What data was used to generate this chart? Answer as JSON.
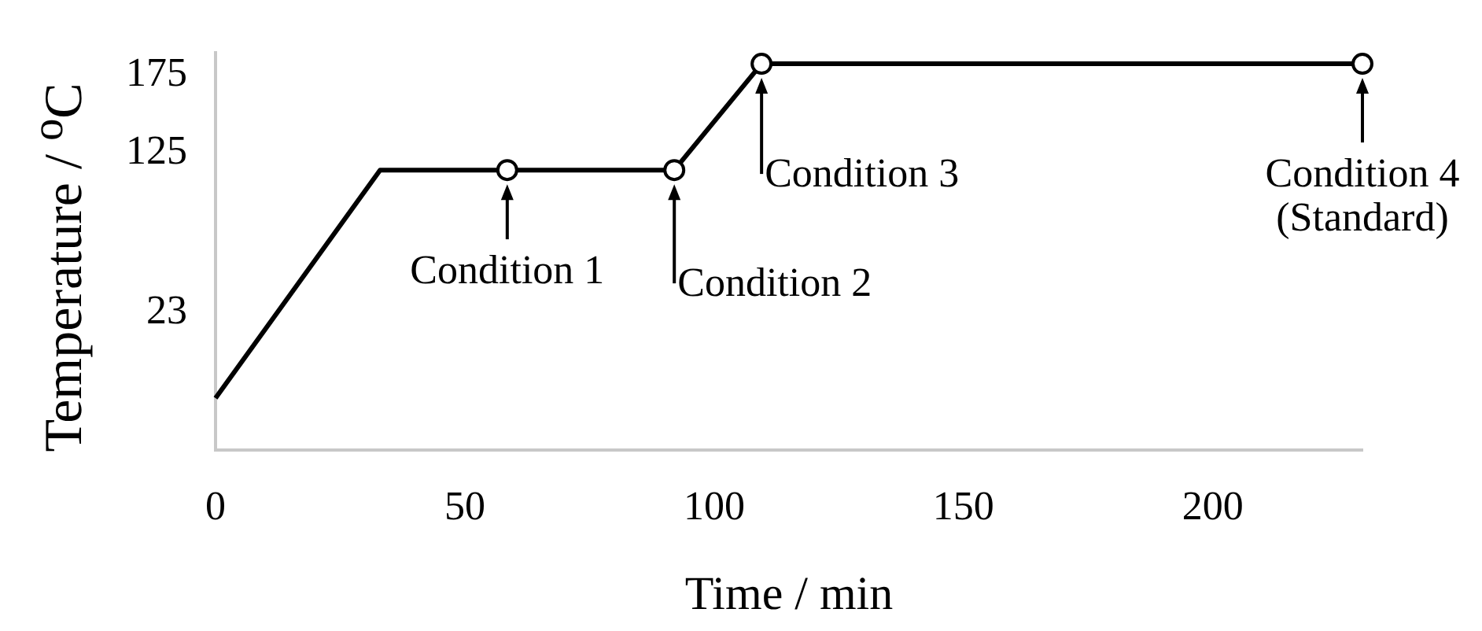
{
  "chart_data": {
    "type": "line",
    "xlabel": "Time / min",
    "ylabel": "Temperature / $^{o}$C",
    "x": [
      0,
      33,
      58.5,
      92,
      109.5,
      230
    ],
    "series": [
      {
        "color": "#000000",
        "values": [
          -32,
          114,
          114,
          114,
          182,
          182
        ]
      }
    ],
    "xlim": [
      0,
      230
    ],
    "xticks": [
      0,
      50,
      100,
      150,
      200
    ],
    "ylim": [
      -65,
      189
    ],
    "yticks": [
      23,
      125,
      175
    ],
    "marker": "circle",
    "line_style": "solid",
    "grid": false,
    "legend": false,
    "annotations": [
      {
        "text": "Condition 1",
        "x": 58.5,
        "y": 114
      },
      {
        "text": "Condition 2",
        "x": 92,
        "y": 114
      },
      {
        "text": "Condition 3",
        "x": 109.5,
        "y": 182
      },
      {
        "text": "Condition 4\n(Standard)",
        "x": 230,
        "y": 182
      }
    ]
  }
}
